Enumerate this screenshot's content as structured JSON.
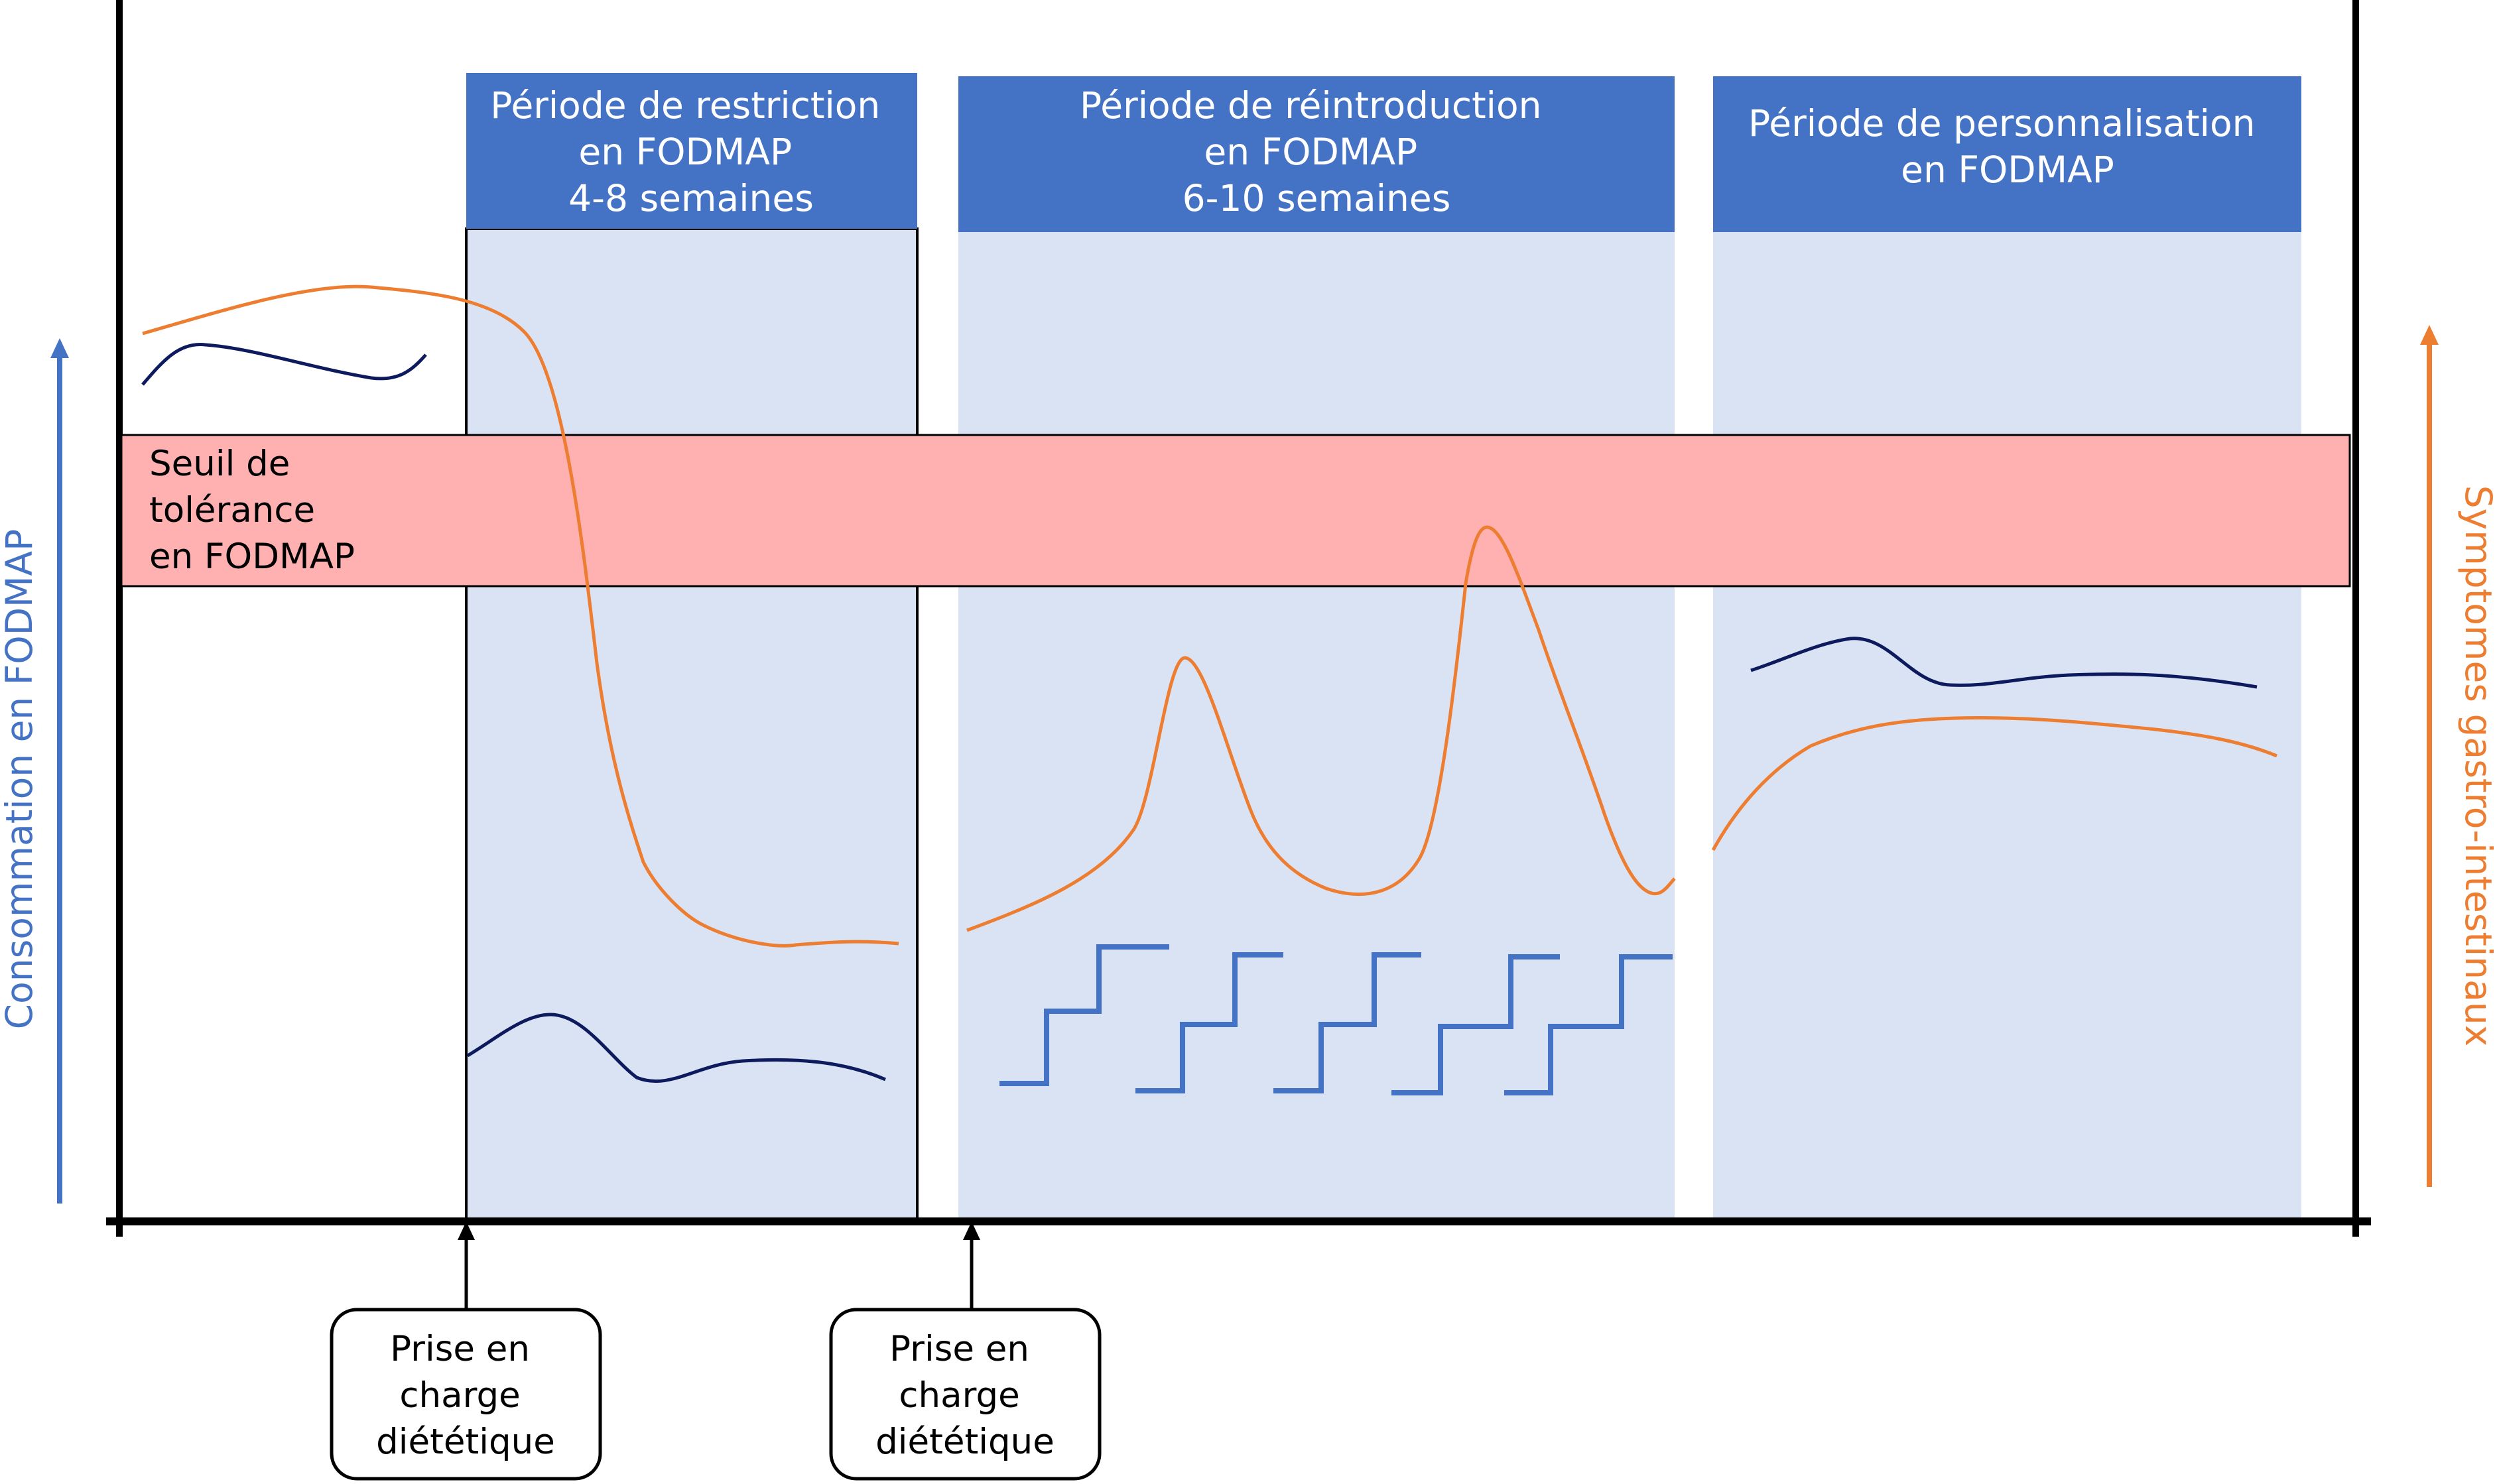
{
  "colors": {
    "header_fill": "#4472c4",
    "panel_fill": "#dae3f3",
    "threshold_fill": "#ffb0b0",
    "fodmap_blue": "#4472c4",
    "dark_navy": "#0d1b5e",
    "symptom_orange": "#ed7d31"
  },
  "periods": [
    {
      "lines": [
        "Période de restriction",
        "en FODMAP",
        "4-8 semaines"
      ]
    },
    {
      "lines": [
        "Période de réintroduction",
        "en FODMAP",
        "6-10 semaines"
      ]
    },
    {
      "lines": [
        "Période de personnalisation",
        "en FODMAP"
      ]
    }
  ],
  "threshold": {
    "lines": [
      "Seuil de",
      "tolérance",
      "en FODMAP"
    ]
  },
  "left_axis_label": "Consommation en FODMAP",
  "right_axis_label": "Symptomes gastro-intestinaux",
  "dietary_boxes": [
    {
      "lines": [
        "Prise en",
        "charge",
        "diététique"
      ]
    },
    {
      "lines": [
        "Prise en",
        "charge",
        "diététique"
      ]
    }
  ]
}
